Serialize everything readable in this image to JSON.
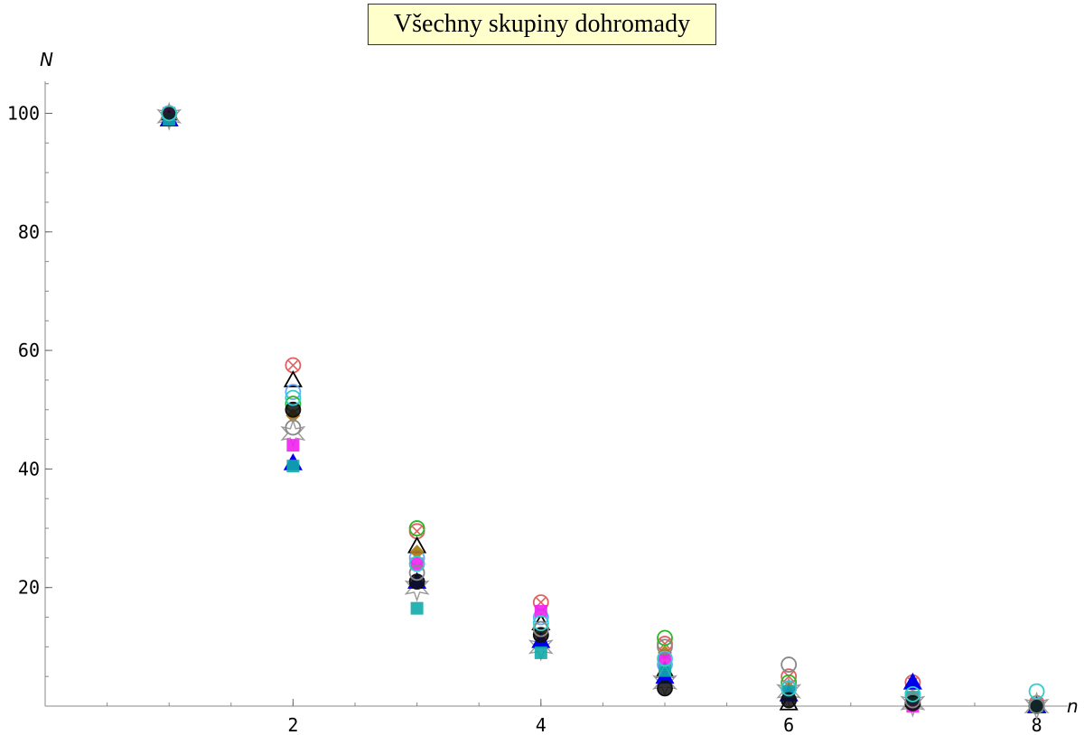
{
  "chart_data": {
    "type": "scatter",
    "title": "Všechny skupiny dohromady",
    "xlabel": "n",
    "ylabel": "N",
    "xlim": [
      0,
      8.25
    ],
    "ylim": [
      0,
      105
    ],
    "x_ticks": [
      2,
      4,
      6,
      8
    ],
    "y_ticks": [
      20,
      40,
      60,
      80,
      100
    ],
    "x_minor_step": 0.5,
    "y_minor_step": 5,
    "grid": false,
    "legend": "none",
    "note": "Many overlapping marker series (one per group); values estimated from axis.",
    "series": [
      {
        "color": "#e06060",
        "marker": "circle-x",
        "x": [
          1,
          2,
          3,
          4,
          5,
          6,
          7,
          8
        ],
        "y": [
          100,
          57.5,
          29.5,
          17.5,
          10.5,
          5,
          4,
          0.5
        ]
      },
      {
        "color": "#000000",
        "marker": "triangle-open",
        "x": [
          1,
          2,
          3,
          4,
          5,
          6,
          7,
          8
        ],
        "y": [
          100,
          55,
          27,
          14,
          6,
          0.5,
          1,
          0
        ]
      },
      {
        "color": "#66aaff",
        "marker": "circle-open",
        "x": [
          1,
          2,
          3,
          4,
          5,
          6,
          7,
          8
        ],
        "y": [
          100,
          53,
          25,
          15,
          7,
          3,
          2,
          0
        ]
      },
      {
        "color": "#22bb22",
        "marker": "circle-open",
        "x": [
          1,
          2,
          3,
          4,
          5,
          6,
          7,
          8
        ],
        "y": [
          100,
          51,
          30,
          13,
          11.5,
          4,
          2,
          0
        ]
      },
      {
        "color": "#aa7711",
        "marker": "diamond",
        "x": [
          1,
          2,
          3,
          4,
          5,
          6,
          7,
          8
        ],
        "y": [
          100,
          49,
          26,
          12,
          9,
          3,
          1.5,
          0
        ]
      },
      {
        "color": "#999999",
        "marker": "star-open",
        "x": [
          1,
          2,
          3,
          4,
          5,
          6,
          7,
          8
        ],
        "y": [
          99.5,
          46,
          20,
          10,
          4,
          2.5,
          0.5,
          0
        ]
      },
      {
        "color": "#ee22ee",
        "marker": "square",
        "x": [
          1,
          2,
          3,
          4,
          5,
          6,
          7,
          8
        ],
        "y": [
          100,
          44,
          24,
          16,
          8,
          2,
          0,
          0
        ]
      },
      {
        "color": "#0000ee",
        "marker": "triangle",
        "x": [
          1,
          2,
          3,
          4,
          5,
          6,
          7,
          8
        ],
        "y": [
          99,
          41,
          21,
          11,
          5,
          2,
          4,
          0
        ]
      },
      {
        "color": "#11aaaa",
        "marker": "square",
        "x": [
          1,
          2,
          3,
          4,
          5,
          6,
          7,
          8
        ],
        "y": [
          99,
          40.5,
          16.5,
          9,
          6,
          2.5,
          1.5,
          0
        ]
      },
      {
        "color": "#111111",
        "marker": "circle",
        "x": [
          1,
          2,
          3,
          4,
          5,
          6,
          7,
          8
        ],
        "y": [
          100,
          50,
          21,
          12,
          3,
          1,
          0.5,
          0
        ]
      },
      {
        "color": "#888888",
        "marker": "circle-open",
        "x": [
          1,
          2,
          3,
          4,
          5,
          6,
          7,
          8
        ],
        "y": [
          100,
          47,
          22.5,
          13,
          10,
          7,
          1,
          0
        ]
      },
      {
        "color": "#33cccc",
        "marker": "circle-open",
        "x": [
          1,
          2,
          3,
          4,
          5,
          6,
          7,
          8
        ],
        "y": [
          100,
          52,
          24,
          14,
          8,
          3,
          2,
          2.5
        ]
      }
    ]
  }
}
